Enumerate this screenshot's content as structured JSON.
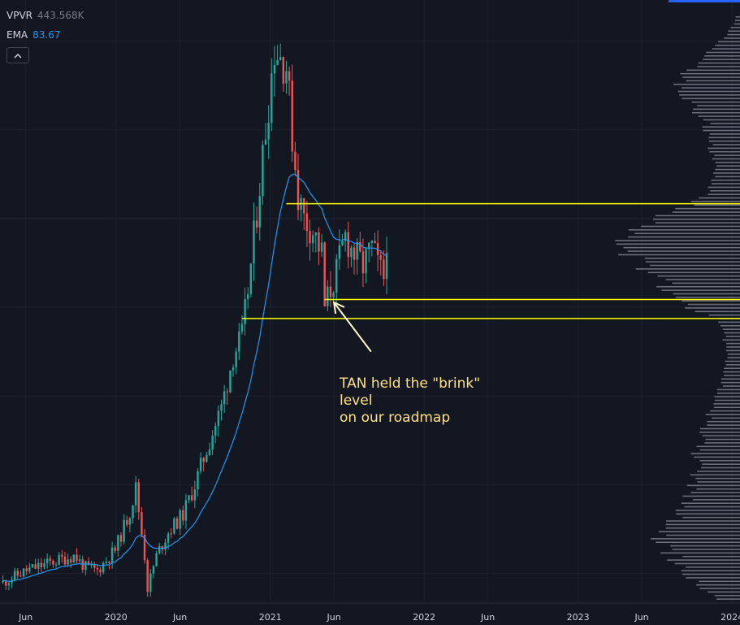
{
  "legend": {
    "vpvr_label": "VPVR",
    "vpvr_value": "443.568K",
    "ema_label": "EMA",
    "ema_value": "83.67",
    "collapse_icon": "chevron-up-icon"
  },
  "annotation": {
    "lines": [
      "TAN held the \"brink\"",
      "level",
      "on our roadmap"
    ]
  },
  "colors": {
    "background": "#131722",
    "up": "#26a69a",
    "down": "#ef5350",
    "ema": "#2196f3",
    "level_line": "#ffff00",
    "annotation": "#ffe082",
    "volume_profile": "#7a7e88",
    "grid": "#1e222d",
    "axis_text": "#d1d4dc"
  },
  "chart_data": {
    "type": "candlestick",
    "title": "",
    "x_axis": {
      "tick_labels": [
        "Jun",
        "2020",
        "Jun",
        "2021",
        "Jun",
        "2022",
        "Jun",
        "2023",
        "Jun",
        "2024"
      ],
      "tick_dates": [
        "2019-06-01",
        "2020-01-01",
        "2020-06-01",
        "2021-01-01",
        "2021-06-01",
        "2022-01-01",
        "2022-06-01",
        "2023-01-01",
        "2023-06-01",
        "2024-01-01"
      ],
      "range": [
        "2019-04-01",
        "2024-01-20"
      ]
    },
    "y_axis": {
      "range": [
        25,
        125
      ],
      "visible_labels": false
    },
    "grid": true,
    "series": [
      {
        "kind": "weekly_close",
        "anchors": [
          [
            "2019-04-08",
            28.5
          ],
          [
            "2019-06-03",
            30.5
          ],
          [
            "2019-08-05",
            32.0
          ],
          [
            "2019-09-23",
            33.0
          ],
          [
            "2019-10-21",
            31.0
          ],
          [
            "2019-11-18",
            30.5
          ],
          [
            "2019-12-30",
            34.0
          ],
          [
            "2020-02-03",
            40.5
          ],
          [
            "2020-02-17",
            44.5
          ],
          [
            "2020-03-09",
            33.0
          ],
          [
            "2020-03-16",
            27.5
          ],
          [
            "2020-04-06",
            33.0
          ],
          [
            "2020-05-04",
            37.0
          ],
          [
            "2020-06-08",
            40.0
          ],
          [
            "2020-07-06",
            45.0
          ],
          [
            "2020-08-03",
            51.0
          ],
          [
            "2020-09-07",
            58.0
          ],
          [
            "2020-10-05",
            67.0
          ],
          [
            "2020-10-26",
            70.0
          ],
          [
            "2020-11-16",
            82.0
          ],
          [
            "2020-12-07",
            96.0
          ],
          [
            "2020-12-28",
            110.0
          ],
          [
            "2021-01-11",
            119.0
          ],
          [
            "2021-02-08",
            116.0
          ],
          [
            "2021-02-22",
            104.0
          ],
          [
            "2021-03-08",
            94.0
          ],
          [
            "2021-03-22",
            90.0
          ],
          [
            "2021-04-12",
            88.0
          ],
          [
            "2021-05-03",
            84.0
          ],
          [
            "2021-05-10",
            75.0
          ],
          [
            "2021-05-24",
            78.0
          ],
          [
            "2021-06-07",
            81.0
          ],
          [
            "2021-06-28",
            87.0
          ],
          [
            "2021-07-19",
            84.0
          ],
          [
            "2021-08-09",
            82.0
          ],
          [
            "2021-08-30",
            85.0
          ],
          [
            "2021-09-13",
            82.0
          ],
          [
            "2021-09-27",
            80.0
          ],
          [
            "2021-10-04",
            87.0
          ]
        ]
      },
      {
        "kind": "ema",
        "name": "EMA",
        "last_value": 83.67
      }
    ],
    "horizontal_levels": [
      {
        "y": 92.5,
        "from": "2021-02-08"
      },
      {
        "y": 76.3,
        "from": "2021-05-10"
      },
      {
        "y": 73.1,
        "from": "2020-10-26"
      }
    ],
    "arrow": {
      "from": [
        "2021-08-28",
        67.5
      ],
      "to": [
        "2021-06-01",
        75.8
      ]
    },
    "volume_profile": {
      "name": "VPVR",
      "total": "443.568K",
      "side": "right",
      "nodes": [
        [
          123,
          0.04
        ],
        [
          120,
          0.16
        ],
        [
          118,
          0.3
        ],
        [
          115,
          0.45
        ],
        [
          112,
          0.55
        ],
        [
          109,
          0.42
        ],
        [
          106,
          0.3
        ],
        [
          103,
          0.28
        ],
        [
          100,
          0.24
        ],
        [
          97,
          0.22
        ],
        [
          94,
          0.28
        ],
        [
          92.5,
          0.42
        ],
        [
          91,
          0.58
        ],
        [
          89,
          0.82
        ],
        [
          87,
          0.95
        ],
        [
          85,
          1.0
        ],
        [
          83,
          0.94
        ],
        [
          81,
          0.82
        ],
        [
          79,
          0.68
        ],
        [
          77,
          0.58
        ],
        [
          76,
          0.52
        ],
        [
          75,
          0.46
        ],
        [
          74,
          0.38
        ],
        [
          73,
          0.2
        ],
        [
          71,
          0.15
        ],
        [
          68,
          0.12
        ],
        [
          64,
          0.14
        ],
        [
          60,
          0.2
        ],
        [
          56,
          0.28
        ],
        [
          53,
          0.34
        ],
        [
          50,
          0.38
        ],
        [
          47,
          0.4
        ],
        [
          44,
          0.42
        ],
        [
          41,
          0.5
        ],
        [
          39,
          0.6
        ],
        [
          37,
          0.72
        ],
        [
          35,
          0.7
        ],
        [
          33,
          0.6
        ],
        [
          31,
          0.5
        ],
        [
          29,
          0.44
        ],
        [
          27,
          0.3
        ],
        [
          26,
          0.18
        ]
      ]
    }
  }
}
